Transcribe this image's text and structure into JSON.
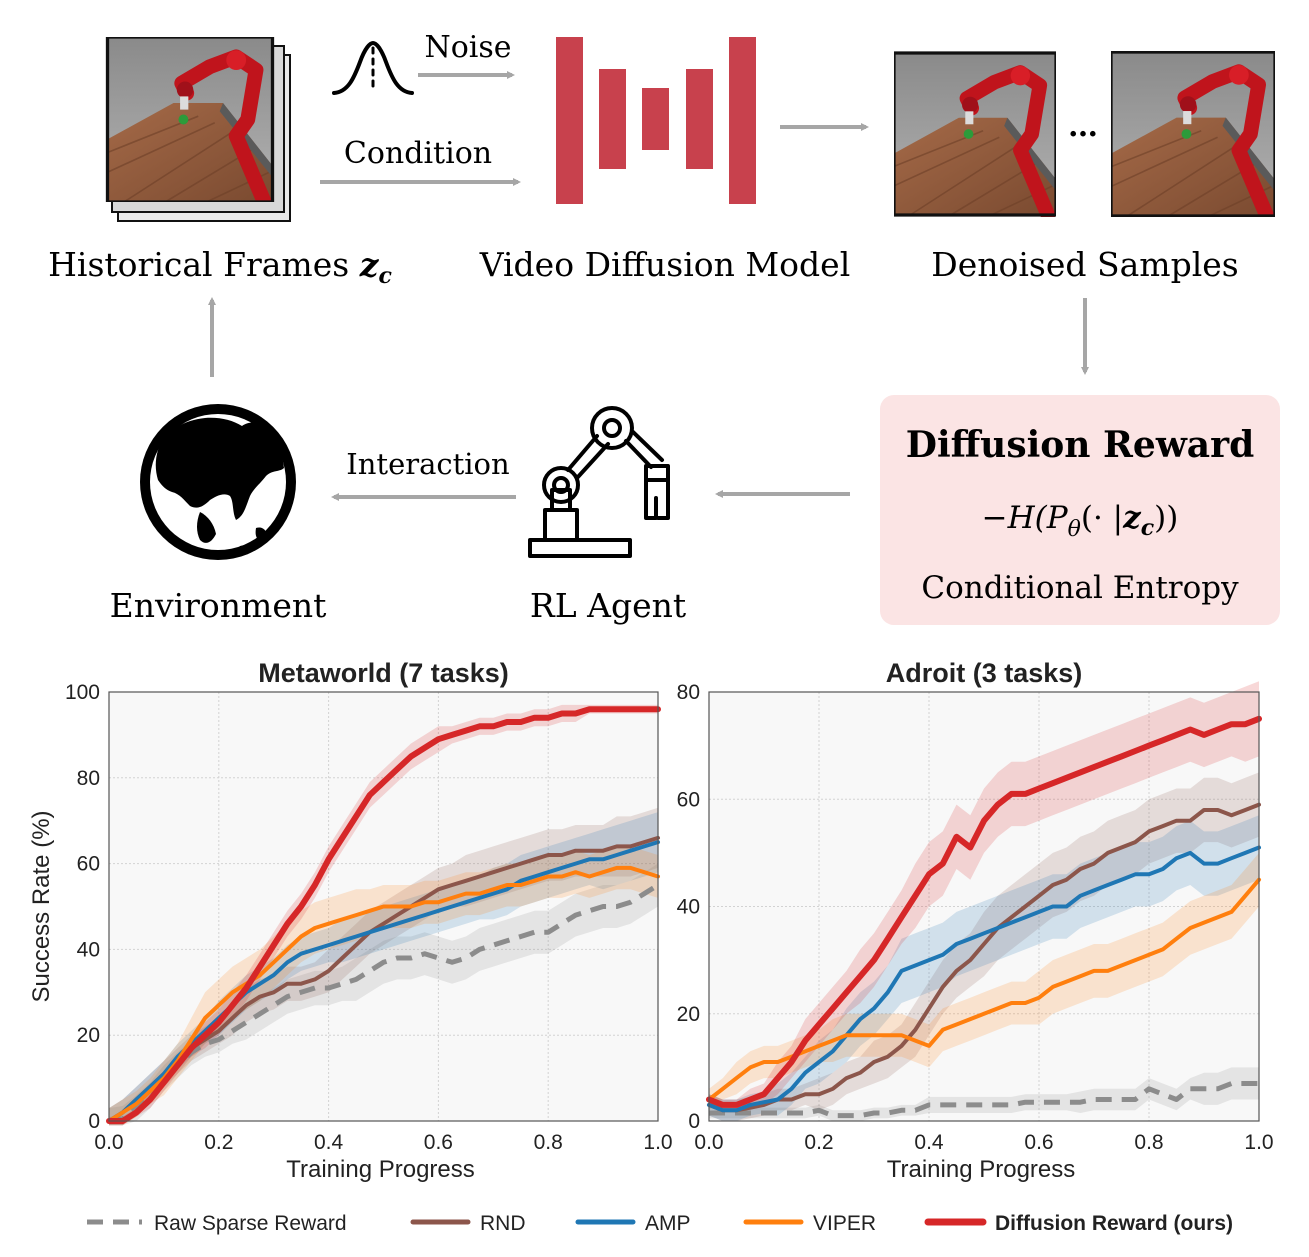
{
  "diagram": {
    "noise_label": "Noise",
    "condition_label": "Condition",
    "historical_frames_label": "Historical  Frames",
    "historical_frames_symbol": "z",
    "historical_frames_sub": "c",
    "video_model_label": "Video Diffusion Model",
    "denoised_label": "Denoised Samples",
    "ellipsis": "…",
    "reward_title": "Diffusion Reward",
    "reward_formula_prefix": "−H(P",
    "reward_formula_theta": "θ",
    "reward_formula_mid": "(· |",
    "reward_formula_z": "z",
    "reward_formula_sub": "c",
    "reward_formula_suffix": "))",
    "reward_subtitle": "Conditional  Entropy",
    "interaction_label": "Interaction",
    "rl_agent_label": "RL Agent",
    "environment_label": "Environment",
    "colors": {
      "model_bars": "#c8414d",
      "arrows": "#a6a6a6",
      "reward_box": "#fbe4e4"
    },
    "icons": [
      "gaussian-noise-icon",
      "robot-arm-icon",
      "globe-icon",
      "robot-scene-image"
    ]
  },
  "chart_data": [
    {
      "type": "line",
      "title": "Metaworld (7 tasks)",
      "xlabel": "Training Progress",
      "ylabel": "Success Rate (%)",
      "xlim": [
        0,
        1
      ],
      "ylim": [
        0,
        100
      ],
      "xticks": [
        "0.0",
        "0.2",
        "0.4",
        "0.6",
        "0.8",
        "1.0"
      ],
      "yticks": [
        "0",
        "20",
        "40",
        "60",
        "80",
        "100"
      ],
      "grid": true,
      "x": [
        0.0,
        0.025,
        0.05,
        0.075,
        0.1,
        0.125,
        0.15,
        0.175,
        0.2,
        0.225,
        0.25,
        0.275,
        0.3,
        0.325,
        0.35,
        0.375,
        0.4,
        0.425,
        0.45,
        0.475,
        0.5,
        0.525,
        0.55,
        0.575,
        0.6,
        0.625,
        0.65,
        0.675,
        0.7,
        0.725,
        0.75,
        0.775,
        0.8,
        0.825,
        0.85,
        0.875,
        0.9,
        0.925,
        0.95,
        0.975,
        1.0
      ],
      "series": [
        {
          "name": "Raw Sparse Reward",
          "color": "#8c8c8c",
          "dashed": true,
          "width": 5,
          "values": [
            0,
            0.5,
            3,
            6,
            10,
            13,
            16,
            18,
            19,
            21,
            23,
            25,
            27,
            29,
            30,
            31,
            31,
            32,
            33,
            35,
            37,
            38,
            38,
            39,
            38,
            37,
            38,
            40,
            41,
            42,
            43,
            44,
            44,
            46,
            48,
            49,
            50,
            50,
            51,
            53,
            55
          ],
          "band": [
            3,
            3,
            3,
            3,
            3,
            3,
            3,
            3,
            3,
            3,
            4,
            4,
            4,
            4,
            4,
            4,
            4,
            4,
            5,
            5,
            5,
            5,
            5,
            5,
            5,
            5,
            5,
            5,
            5,
            5,
            5,
            5,
            5,
            5,
            5,
            5,
            5,
            5,
            5,
            5,
            5
          ]
        },
        {
          "name": "RND",
          "color": "#8c564b",
          "dashed": false,
          "width": 4,
          "values": [
            0,
            2,
            5,
            8,
            11,
            14,
            17,
            19,
            21,
            24,
            27,
            29,
            30,
            32,
            32,
            33,
            35,
            38,
            41,
            44,
            46,
            48,
            50,
            52,
            54,
            55,
            56,
            57,
            58,
            59,
            60,
            61,
            62,
            62,
            63,
            63,
            63,
            64,
            64,
            65,
            66
          ],
          "band": [
            3,
            3,
            3,
            3,
            3,
            3,
            3,
            3,
            3,
            4,
            4,
            4,
            4,
            4,
            4,
            4,
            5,
            5,
            5,
            5,
            5,
            5,
            5,
            5,
            5,
            5,
            6,
            6,
            6,
            6,
            6,
            6,
            6,
            6,
            6,
            6,
            6,
            7,
            7,
            7,
            7
          ]
        },
        {
          "name": "AMP",
          "color": "#1f77b4",
          "dashed": false,
          "width": 4,
          "values": [
            0,
            2,
            5,
            8,
            11,
            15,
            18,
            21,
            24,
            27,
            30,
            32,
            34,
            37,
            39,
            40,
            41,
            42,
            43,
            44,
            45,
            46,
            47,
            48,
            49,
            50,
            51,
            52,
            53,
            54,
            56,
            57,
            58,
            59,
            60,
            61,
            61,
            62,
            63,
            64,
            65
          ],
          "band": [
            3,
            3,
            3,
            3,
            3,
            3,
            3,
            3,
            4,
            4,
            4,
            4,
            4,
            4,
            4,
            4,
            4,
            5,
            5,
            5,
            5,
            5,
            5,
            5,
            5,
            5,
            5,
            5,
            6,
            6,
            6,
            6,
            6,
            6,
            6,
            6,
            7,
            7,
            7,
            7,
            7
          ]
        },
        {
          "name": "VIPER",
          "color": "#ff7f0e",
          "dashed": false,
          "width": 4,
          "values": [
            0,
            2,
            4,
            7,
            10,
            14,
            19,
            24,
            27,
            30,
            32,
            34,
            37,
            40,
            43,
            45,
            46,
            47,
            48,
            49,
            50,
            50,
            50,
            51,
            51,
            52,
            53,
            53,
            54,
            55,
            55,
            56,
            57,
            57,
            58,
            57,
            58,
            59,
            59,
            58,
            57
          ],
          "band": [
            3,
            3,
            3,
            3,
            4,
            4,
            5,
            6,
            6,
            6,
            6,
            6,
            6,
            6,
            6,
            6,
            6,
            6,
            6,
            5,
            5,
            5,
            5,
            5,
            5,
            5,
            5,
            5,
            5,
            5,
            5,
            5,
            5,
            5,
            5,
            5,
            5,
            5,
            5,
            5,
            5
          ]
        },
        {
          "name": "Diffusion Reward (ours)",
          "color": "#d62728",
          "dashed": false,
          "width": 6,
          "values": [
            0,
            0,
            2,
            5,
            9,
            13,
            17,
            20,
            23,
            27,
            31,
            36,
            41,
            46,
            50,
            55,
            61,
            66,
            71,
            76,
            79,
            82,
            85,
            87,
            89,
            90,
            91,
            92,
            92,
            93,
            93,
            94,
            94,
            95,
            95,
            96,
            96,
            96,
            96,
            96,
            96
          ],
          "band": [
            1,
            1,
            1,
            2,
            2,
            2,
            2,
            3,
            3,
            3,
            3,
            3,
            3,
            3,
            3,
            3,
            3,
            3,
            3,
            3,
            3,
            3,
            3,
            3,
            3,
            2,
            2,
            2,
            2,
            2,
            2,
            2,
            2,
            2,
            2,
            1,
            1,
            1,
            1,
            1,
            1
          ]
        }
      ]
    },
    {
      "type": "line",
      "title": "Adroit (3 tasks)",
      "xlabel": "Training Progress",
      "ylabel": "",
      "xlim": [
        0,
        1
      ],
      "ylim": [
        0,
        80
      ],
      "xticks": [
        "0.0",
        "0.2",
        "0.4",
        "0.6",
        "0.8",
        "1.0"
      ],
      "yticks": [
        "0",
        "20",
        "40",
        "60",
        "80"
      ],
      "grid": true,
      "x": [
        0.0,
        0.025,
        0.05,
        0.075,
        0.1,
        0.125,
        0.15,
        0.175,
        0.2,
        0.225,
        0.25,
        0.275,
        0.3,
        0.325,
        0.35,
        0.375,
        0.4,
        0.425,
        0.45,
        0.475,
        0.5,
        0.525,
        0.55,
        0.575,
        0.6,
        0.625,
        0.65,
        0.675,
        0.7,
        0.725,
        0.75,
        0.775,
        0.8,
        0.825,
        0.85,
        0.875,
        0.9,
        0.925,
        0.95,
        0.975,
        1.0
      ],
      "series": [
        {
          "name": "Raw Sparse Reward",
          "color": "#8c8c8c",
          "dashed": true,
          "width": 5,
          "values": [
            1.5,
            1.5,
            1.5,
            1.5,
            1.5,
            1.5,
            1.5,
            1.5,
            2,
            1,
            1,
            1,
            1.5,
            1.5,
            2,
            2,
            3,
            3,
            3,
            3,
            3,
            3,
            3,
            3.5,
            3.5,
            3.5,
            3.5,
            3.5,
            4,
            4,
            4,
            4,
            6,
            5,
            4,
            6,
            6,
            6,
            7,
            7,
            7
          ],
          "band": [
            1,
            1,
            1,
            1,
            1,
            1,
            1,
            1,
            1,
            1,
            1,
            1,
            1,
            1,
            1,
            1,
            1.5,
            1.5,
            1.5,
            1.5,
            1.5,
            1.5,
            1.5,
            1.5,
            1.5,
            1.5,
            1.5,
            2,
            2,
            2,
            2,
            2,
            2,
            2,
            2,
            2,
            3,
            3,
            3,
            3,
            3
          ]
        },
        {
          "name": "RND",
          "color": "#8c564b",
          "dashed": false,
          "width": 4,
          "values": [
            3,
            2,
            2,
            2.5,
            3,
            4,
            4,
            5,
            5,
            6,
            8,
            9,
            11,
            12,
            14,
            17,
            21,
            25,
            28,
            30,
            33,
            36,
            38,
            40,
            42,
            44,
            45,
            47,
            48,
            50,
            51,
            52,
            54,
            55,
            56,
            56,
            58,
            58,
            57,
            58,
            59
          ],
          "band": [
            2,
            2,
            2,
            2,
            2,
            2,
            2,
            2,
            3,
            3,
            3,
            3,
            4,
            4,
            4,
            5,
            5,
            5,
            5,
            5,
            6,
            6,
            6,
            6,
            6,
            6,
            6,
            6,
            6,
            6,
            6,
            6,
            6,
            6,
            6,
            6,
            6,
            6,
            6,
            6,
            6
          ]
        },
        {
          "name": "AMP",
          "color": "#1f77b4",
          "dashed": false,
          "width": 4,
          "values": [
            3,
            2,
            2,
            3,
            3.5,
            4,
            6,
            9,
            11,
            13,
            16,
            19,
            21,
            24,
            28,
            29,
            30,
            31,
            33,
            34,
            35,
            36,
            37,
            38,
            39,
            40,
            40,
            42,
            43,
            44,
            45,
            46,
            46,
            47,
            49,
            50,
            48,
            48,
            49,
            50,
            51
          ],
          "band": [
            2,
            2,
            2,
            2,
            2,
            3,
            3,
            3,
            4,
            4,
            5,
            5,
            5,
            5,
            6,
            6,
            6,
            6,
            6,
            6,
            6,
            6,
            6,
            6,
            6,
            6,
            6,
            6,
            6,
            6,
            6,
            6,
            6,
            6,
            6,
            6,
            6,
            6,
            6,
            6,
            6
          ]
        },
        {
          "name": "VIPER",
          "color": "#ff7f0e",
          "dashed": false,
          "width": 4,
          "values": [
            4,
            6,
            8,
            10,
            11,
            11,
            12,
            13,
            14,
            15,
            16,
            16,
            16,
            16,
            16,
            15,
            14,
            17,
            18,
            19,
            20,
            21,
            22,
            22,
            23,
            25,
            26,
            27,
            28,
            28,
            29,
            30,
            31,
            32,
            34,
            36,
            37,
            38,
            39,
            42,
            45
          ],
          "band": [
            2,
            2,
            3,
            3,
            3,
            3,
            3,
            3,
            3,
            4,
            4,
            4,
            4,
            4,
            4,
            4,
            4,
            4,
            4,
            4,
            4,
            4,
            4,
            4,
            5,
            5,
            5,
            5,
            5,
            5,
            5,
            5,
            5,
            5,
            5,
            5,
            5,
            5,
            5,
            5,
            5
          ]
        },
        {
          "name": "Diffusion Reward (ours)",
          "color": "#d62728",
          "dashed": false,
          "width": 6,
          "values": [
            4,
            3,
            3,
            4,
            5,
            8,
            11,
            15,
            18,
            21,
            24,
            27,
            30,
            34,
            38,
            42,
            46,
            48,
            53,
            51,
            56,
            59,
            61,
            61,
            62,
            63,
            64,
            65,
            66,
            67,
            68,
            69,
            70,
            71,
            72,
            73,
            72,
            73,
            74,
            74,
            75
          ],
          "band": [
            1,
            1,
            1,
            2,
            2,
            3,
            3,
            4,
            4,
            4,
            4,
            5,
            5,
            5,
            5,
            6,
            6,
            6,
            6,
            6,
            6,
            6,
            6,
            6,
            6,
            6,
            6,
            6,
            6,
            6,
            6,
            6,
            6,
            6,
            6,
            6,
            6,
            6,
            6,
            7,
            7
          ]
        }
      ]
    }
  ],
  "legend": {
    "items": [
      {
        "label": "Raw Sparse Reward",
        "color": "#8c8c8c",
        "dashed": true,
        "bold": false
      },
      {
        "label": "RND",
        "color": "#8c564b",
        "dashed": false,
        "bold": false
      },
      {
        "label": "AMP",
        "color": "#1f77b4",
        "dashed": false,
        "bold": false
      },
      {
        "label": "VIPER",
        "color": "#ff7f0e",
        "dashed": false,
        "bold": false
      },
      {
        "label": "Diffusion Reward (ours)",
        "color": "#d62728",
        "dashed": false,
        "bold": true
      }
    ]
  }
}
